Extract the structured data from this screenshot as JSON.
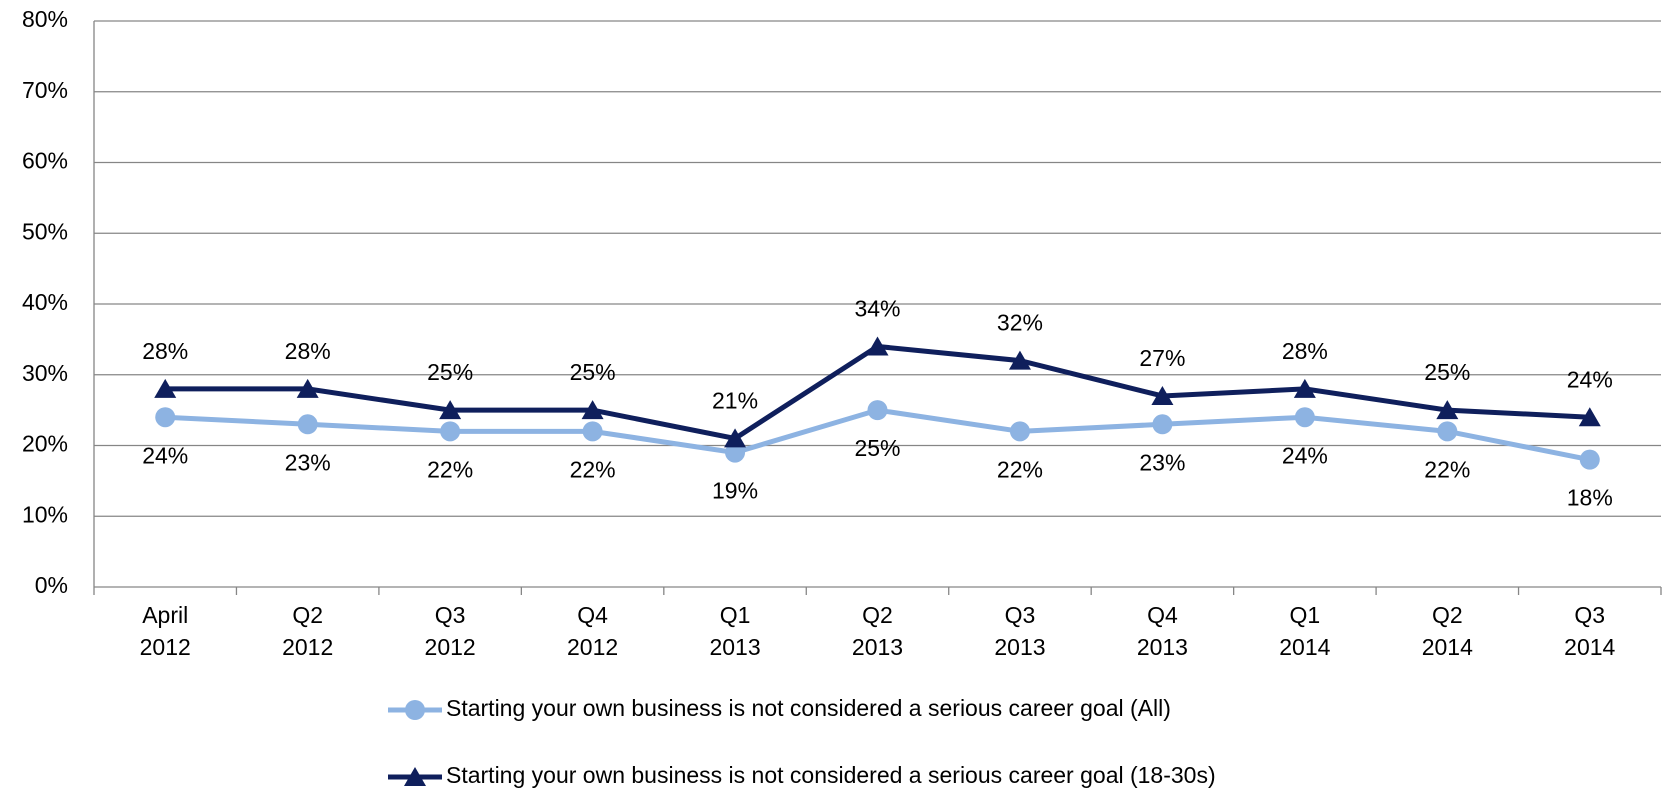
{
  "chart_data": {
    "type": "line",
    "categories": [
      "April 2012",
      "Q2 2012",
      "Q3 2012",
      "Q4 2012",
      "Q1 2013",
      "Q2 2013",
      "Q3 2013",
      "Q4 2013",
      "Q1 2014",
      "Q2 2014",
      "Q3 2014"
    ],
    "series": [
      {
        "name": "Starting your own business is not considered a serious career goal (All)",
        "color": "#8db3e2",
        "marker": "circle",
        "values": [
          24,
          23,
          22,
          22,
          19,
          25,
          22,
          23,
          24,
          22,
          18
        ],
        "value_labels": [
          "24%",
          "23%",
          "22%",
          "22%",
          "19%",
          "25%",
          "22%",
          "23%",
          "24%",
          "22%",
          "18%"
        ]
      },
      {
        "name": "Starting your own business is not considered a serious career goal (18-30s)",
        "color": "#0f1f5c",
        "marker": "triangle",
        "values": [
          28,
          28,
          25,
          25,
          21,
          34,
          32,
          27,
          28,
          25,
          24
        ],
        "value_labels": [
          "28%",
          "28%",
          "25%",
          "25%",
          "21%",
          "34%",
          "32%",
          "27%",
          "28%",
          "25%",
          "24%"
        ]
      }
    ],
    "ylim": [
      0,
      80
    ],
    "yticks": [
      {
        "value": 0,
        "label": "0%"
      },
      {
        "value": 10,
        "label": "10%"
      },
      {
        "value": 20,
        "label": "20%"
      },
      {
        "value": 30,
        "label": "30%"
      },
      {
        "value": 40,
        "label": "40%"
      },
      {
        "value": 50,
        "label": "50%"
      },
      {
        "value": 60,
        "label": "60%"
      },
      {
        "value": 70,
        "label": "70%"
      },
      {
        "value": 80,
        "label": "80%"
      }
    ],
    "grid": true,
    "legend": "bottom"
  }
}
